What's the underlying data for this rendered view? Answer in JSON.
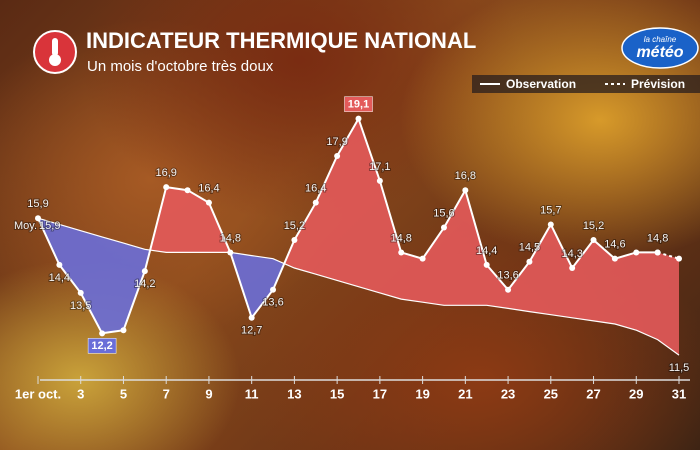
{
  "chart_data": {
    "type": "area-line",
    "title": "INDICATEUR THERMIQUE NATIONAL",
    "subtitle": "Un mois d'octobre très doux",
    "brand": [
      "la chaîne",
      "météo"
    ],
    "x": [
      1,
      2,
      3,
      4,
      5,
      6,
      7,
      8,
      9,
      10,
      11,
      12,
      13,
      14,
      15,
      16,
      17,
      18,
      19,
      20,
      21,
      22,
      23,
      24,
      25,
      26,
      27,
      28,
      29,
      30,
      31
    ],
    "xlim": [
      1,
      31
    ],
    "xticks": [
      {
        "value": 1,
        "label": "1er oct."
      },
      3,
      5,
      7,
      9,
      11,
      13,
      15,
      17,
      19,
      21,
      23,
      25,
      27,
      29,
      31
    ],
    "ylim": [
      10.7,
      19.7
    ],
    "above_color": "#e35a5a",
    "below_color": "#6a6ed8",
    "series": [
      {
        "name": "Observation",
        "color": "#ffffff",
        "style": "solid",
        "values": [
          15.9,
          14.4,
          13.5,
          12.2,
          12.3,
          14.2,
          16.9,
          16.8,
          16.4,
          14.8,
          12.7,
          13.6,
          15.2,
          16.4,
          17.9,
          19.1,
          17.1,
          14.8,
          14.6,
          15.6,
          16.8,
          14.4,
          13.6,
          14.5,
          15.7,
          14.3,
          15.2,
          14.6,
          14.8,
          14.8,
          null
        ],
        "value_labels": [
          "15,9",
          "14,4",
          "13,5",
          "12,2",
          null,
          "14,2",
          "16,9",
          null,
          "16,4",
          "14,8",
          "12,7",
          "13,6",
          "15,2",
          "16,4",
          "17,9",
          "19,1",
          "17,1",
          "14,8",
          null,
          "15,6",
          "16,8",
          "14,4",
          "13,6",
          "14,5",
          "15,7",
          "14,3",
          "15,2",
          "14,6",
          null,
          "14,8",
          null
        ]
      },
      {
        "name": "Prévision",
        "color": "#ffffff",
        "style": "dashed",
        "values": [
          null,
          null,
          null,
          null,
          null,
          null,
          null,
          null,
          null,
          null,
          null,
          null,
          null,
          null,
          null,
          null,
          null,
          null,
          null,
          null,
          null,
          null,
          null,
          null,
          null,
          null,
          null,
          null,
          null,
          14.8,
          14.6
        ]
      },
      {
        "name": "Moy.",
        "color": "#ffffff",
        "style": "mean",
        "values": [
          15.9,
          15.7,
          15.5,
          15.3,
          15.1,
          14.9,
          14.8,
          14.8,
          14.8,
          14.8,
          14.7,
          14.6,
          14.3,
          14.1,
          13.9,
          13.7,
          13.5,
          13.3,
          13.2,
          13.1,
          13.1,
          13.1,
          13.0,
          12.9,
          12.8,
          12.7,
          12.6,
          12.5,
          12.3,
          12.0,
          11.5
        ],
        "value_labels": [
          "15,9",
          null,
          null,
          null,
          null,
          null,
          null,
          null,
          null,
          null,
          null,
          null,
          null,
          null,
          null,
          null,
          null,
          null,
          null,
          null,
          null,
          null,
          null,
          null,
          null,
          null,
          null,
          null,
          null,
          null,
          "11,5"
        ]
      }
    ]
  }
}
